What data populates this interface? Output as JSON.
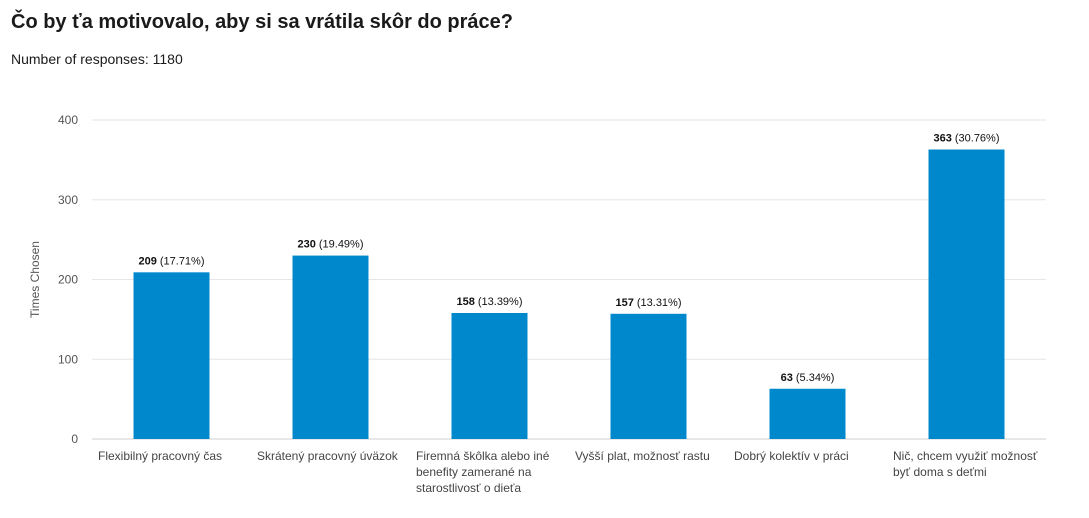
{
  "title": "Čo by ťa motivovalo, aby si sa vrátila skôr do práce?",
  "subtitle": "Number of responses: 1180",
  "chart_data": {
    "type": "bar",
    "ylabel": "Times Chosen",
    "ylim": [
      0,
      400
    ],
    "yticks": [
      0,
      100,
      200,
      300,
      400
    ],
    "grid": true,
    "bar_color": "#0088cc",
    "categories": [
      [
        "Flexibilný pracovný čas"
      ],
      [
        "Skrátený pracovný úväzok"
      ],
      [
        "Firemná škôlka alebo iné",
        "benefity zamerané na",
        "starostlivosť o dieťa"
      ],
      [
        "Vyšší plat, možnosť rastu"
      ],
      [
        "Dobrý kolektív v práci"
      ],
      [
        "Nič, chcem využiť možnosť",
        "byť doma s deťmi"
      ]
    ],
    "values": [
      209,
      230,
      158,
      157,
      63,
      363
    ],
    "percent_labels": [
      "(17.71%)",
      "(19.49%)",
      "(13.39%)",
      "(13.31%)",
      "(5.34%)",
      "(30.76%)"
    ]
  }
}
